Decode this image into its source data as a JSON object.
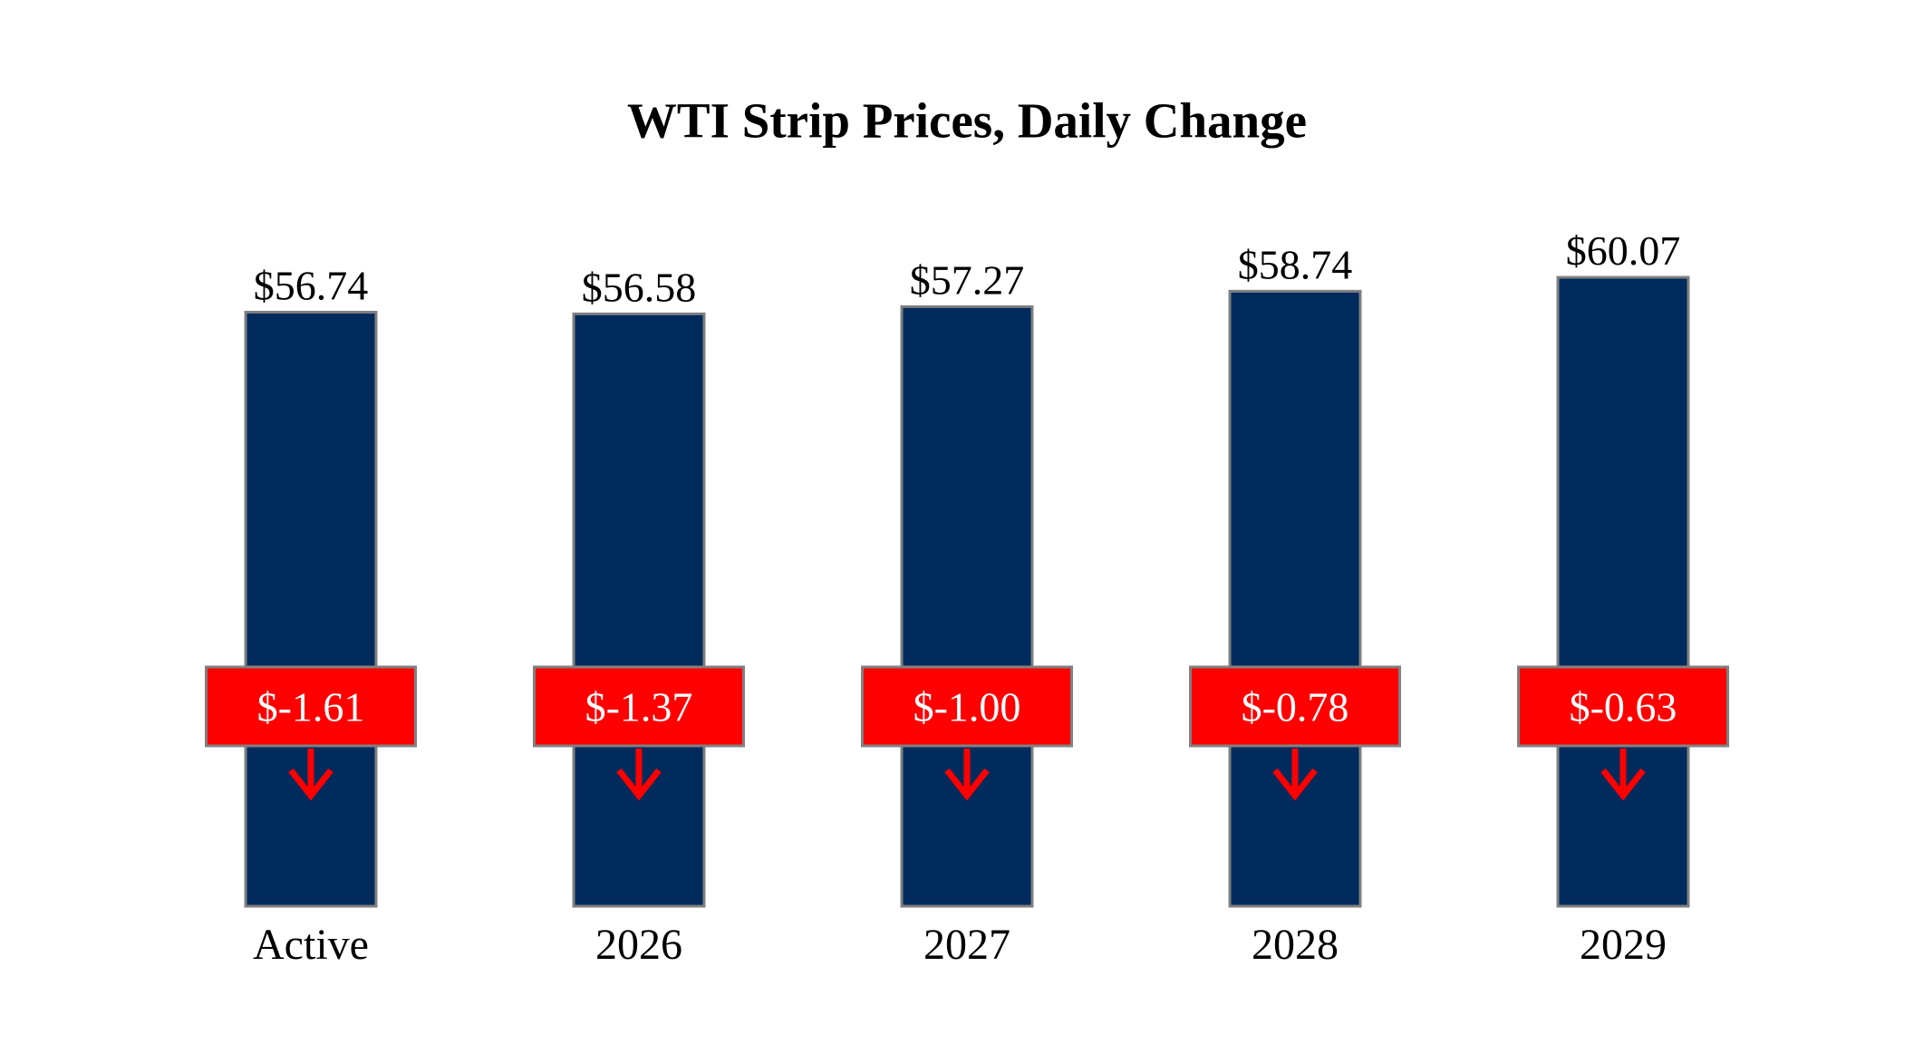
{
  "chart_data": {
    "type": "bar",
    "title": "WTI Strip Prices, Daily Change",
    "categories": [
      "Active",
      "2026",
      "2027",
      "2028",
      "2029"
    ],
    "values": [
      56.74,
      56.58,
      57.27,
      58.74,
      60.07
    ],
    "value_labels": [
      "$56.74",
      "$56.58",
      "$57.27",
      "$58.74",
      "$60.07"
    ],
    "changes": [
      -1.61,
      -1.37,
      -1.0,
      -0.78,
      -0.63
    ],
    "change_labels": [
      "$-1.61",
      "$-1.37",
      "$-1.00",
      "$-0.78",
      "$-0.63"
    ],
    "color": "#002b5c",
    "change_color": "#ff0000"
  }
}
